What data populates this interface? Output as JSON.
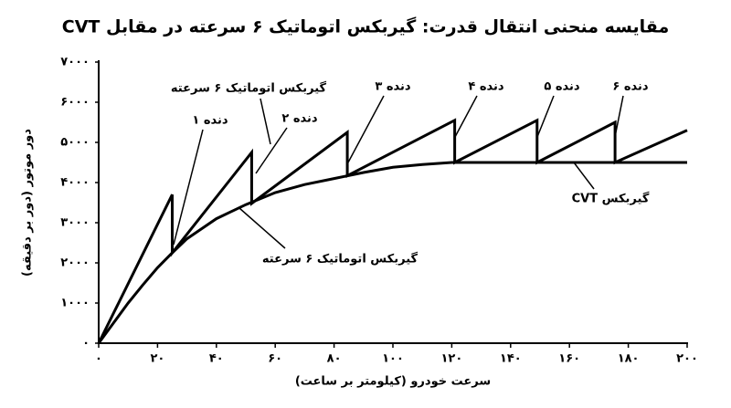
{
  "chart_data": {
    "type": "line",
    "title": "مقایسه منحنی انتقال قدرت: گیربکس اتوماتیک ۶ سرعته در مقابل CVT",
    "x_label": "سرعت خودرو (کیلومتر بر ساعت)",
    "y_label": "دور موتور (دور بر دقیقه)",
    "xlim": [
      0,
      200
    ],
    "xticks": [
      {
        "value": 0,
        "label": "۰"
      },
      {
        "value": 20,
        "label": "۲۰"
      },
      {
        "value": 40,
        "label": "۴۰"
      },
      {
        "value": 60,
        "label": "۶۰"
      },
      {
        "value": 80,
        "label": "۸۰"
      },
      {
        "value": 100,
        "label": "۱۰۰"
      },
      {
        "value": 120,
        "label": "۱۲۰"
      },
      {
        "value": 140,
        "label": "۱۴۰"
      },
      {
        "value": 160,
        "label": "۱۶۰"
      },
      {
        "value": 180,
        "label": "۱۸۰"
      },
      {
        "value": 200,
        "label": "۲۰۰"
      }
    ],
    "ylim": [
      0,
      7000
    ],
    "yticks": [
      {
        "value": 0,
        "label": "۰"
      },
      {
        "value": 1000,
        "label": "۱۰۰۰"
      },
      {
        "value": 2000,
        "label": "۲۰۰۰"
      },
      {
        "value": 3000,
        "label": "۳۰۰۰"
      },
      {
        "value": 4000,
        "label": "۴۰۰۰"
      },
      {
        "value": 5000,
        "label": "۵۰۰۰"
      },
      {
        "value": 6000,
        "label": "۶۰۰۰"
      },
      {
        "value": 7000,
        "label": "۷۰۰۰"
      }
    ],
    "grid": false,
    "series": [
      {
        "name": "گیربکس اتوماتیک ۶ سرعته",
        "color": "#000000",
        "x": [
          0,
          25,
          25,
          52,
          52,
          84.5,
          84.5,
          121,
          121,
          149,
          149,
          175.5,
          175.5,
          200
        ],
        "values": [
          0,
          3700,
          2250,
          4750,
          3480,
          5250,
          4170,
          5550,
          4500,
          5550,
          4500,
          5500,
          4500,
          5300
        ]
      },
      {
        "name": "گیربکس CVT",
        "color": "#000000",
        "x": [
          0,
          5,
          10,
          15,
          20,
          25,
          30,
          40,
          50,
          60,
          70,
          80,
          90,
          100,
          110,
          120,
          140,
          160,
          180,
          200
        ],
        "values": [
          0,
          500,
          1000,
          1450,
          1880,
          2250,
          2600,
          3100,
          3450,
          3750,
          3950,
          4100,
          4250,
          4380,
          4450,
          4500,
          4500,
          4500,
          4500,
          4500
        ]
      }
    ],
    "annotations": [
      "دنده ۱",
      "دنده ۲",
      "دنده ۳",
      "دنده ۴",
      "دنده ۵",
      "دنده ۶"
    ]
  }
}
